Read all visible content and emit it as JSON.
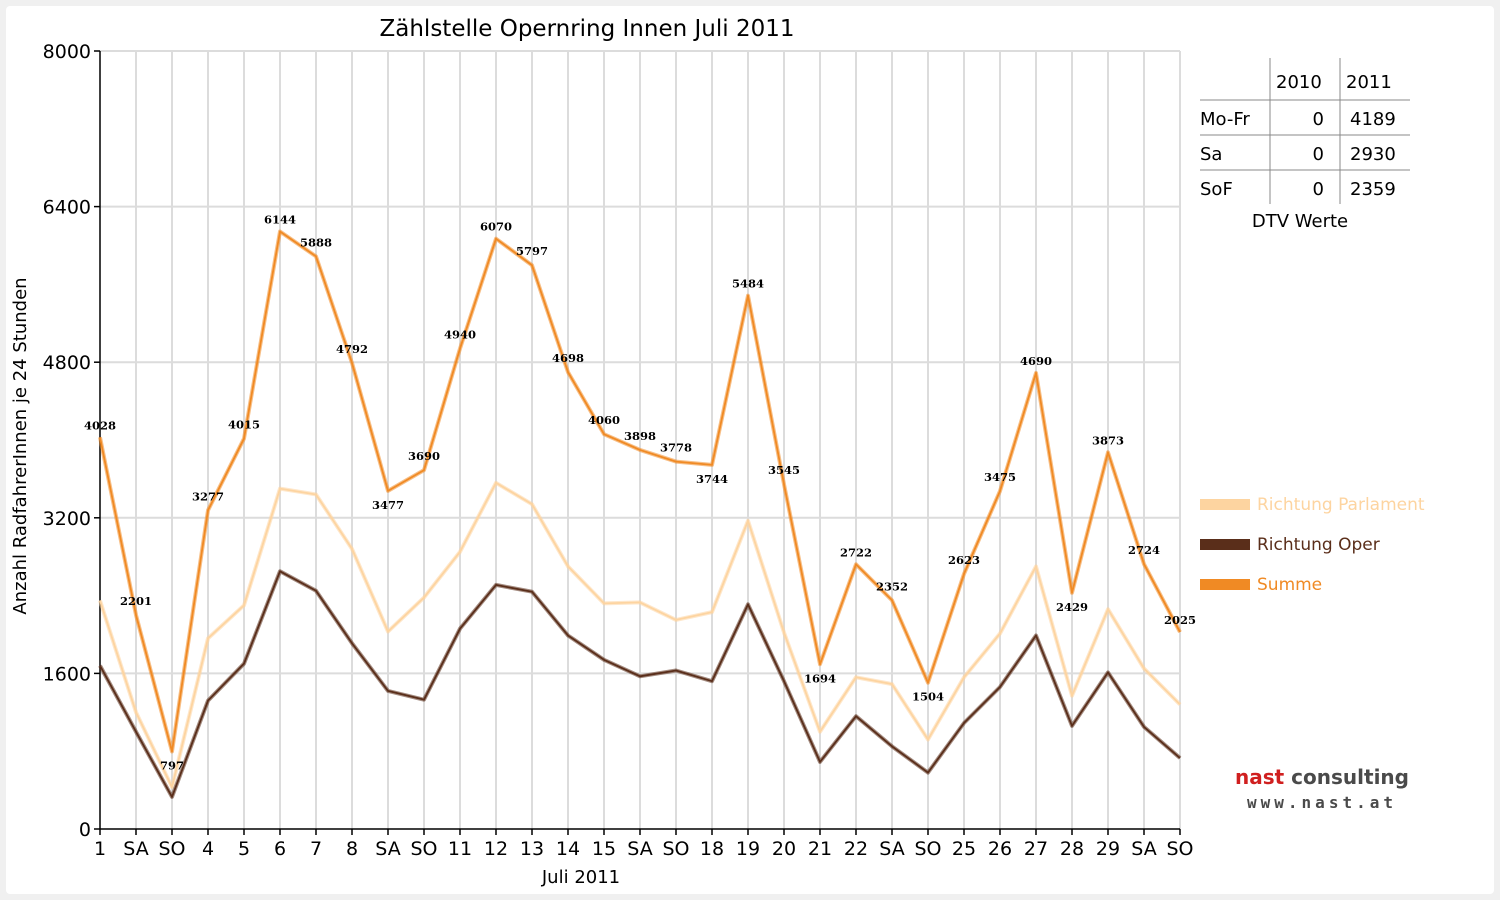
{
  "chart_data": {
    "type": "line",
    "title": "Zählstelle Opernring Innen Juli 2011",
    "xlabel": "Juli 2011",
    "ylabel": "Anzahl RadfahrerInnen je 24 Stunden",
    "ylim": [
      0,
      8000
    ],
    "yticks": [
      "0",
      "1600",
      "3200",
      "4800",
      "6400",
      "8000"
    ],
    "grid": true,
    "categories": [
      "1",
      "SA",
      "SO",
      "4",
      "5",
      "6",
      "7",
      "8",
      "SA",
      "SO",
      "11",
      "12",
      "13",
      "14",
      "15",
      "SA",
      "SO",
      "18",
      "19",
      "20",
      "21",
      "22",
      "SA",
      "SO",
      "25",
      "26",
      "27",
      "28",
      "29",
      "SA",
      "SO"
    ],
    "weekend_categories": [
      "SO"
    ],
    "weekend_color": "#ff0000",
    "series": [
      {
        "name": "Richtung Parlament",
        "color": "#fdd4a0",
        "values": [
          2350,
          1200,
          430,
          1960,
          2300,
          3500,
          3440,
          2880,
          2030,
          2380,
          2850,
          3560,
          3340,
          2700,
          2320,
          2330,
          2150,
          2230,
          3170,
          2020,
          1000,
          1560,
          1490,
          920,
          1560,
          2010,
          2700,
          1370,
          2260,
          1650,
          1280
        ]
      },
      {
        "name": "Richtung Oper",
        "color": "#5a2e1a",
        "values": [
          1680,
          1000,
          330,
          1320,
          1700,
          2650,
          2450,
          1910,
          1420,
          1330,
          2060,
          2510,
          2440,
          1990,
          1740,
          1570,
          1630,
          1520,
          2310,
          1520,
          690,
          1160,
          850,
          580,
          1090,
          1460,
          1990,
          1060,
          1610,
          1050,
          730
        ]
      },
      {
        "name": "Summe",
        "color": "#f08a24",
        "values": [
          4028,
          2201,
          797,
          3277,
          4015,
          6144,
          5888,
          4792,
          3477,
          3690,
          4940,
          6070,
          5797,
          4698,
          4060,
          3898,
          3778,
          3744,
          5484,
          3545,
          1694,
          2722,
          2352,
          1504,
          2623,
          3475,
          4690,
          2429,
          3873,
          2724,
          2025
        ],
        "labels": [
          "4028",
          "2201",
          "797",
          "3277",
          "4015",
          "6144",
          "5888",
          "4792",
          "3477",
          "3690",
          "4940",
          "6070",
          "5797",
          "4698",
          "4060",
          "3898",
          "3778",
          "3744",
          "5484",
          "3545",
          "1694",
          "2722",
          "2352",
          "1504",
          "2623",
          "3475",
          "4690",
          "2429",
          "3873",
          "2724",
          "2025"
        ]
      }
    ],
    "legend_placement": "right",
    "dtv_table": {
      "headers": [
        "",
        "2010",
        "2011"
      ],
      "rows": [
        [
          "Mo-Fr",
          "0",
          "4189"
        ],
        [
          "Sa",
          "0",
          "2930"
        ],
        [
          "SoF",
          "0",
          "2359"
        ]
      ],
      "caption": "DTV Werte"
    }
  },
  "logo": {
    "name_part1": "nast",
    "name_part2": " consulting",
    "url": "www.nast.at"
  }
}
